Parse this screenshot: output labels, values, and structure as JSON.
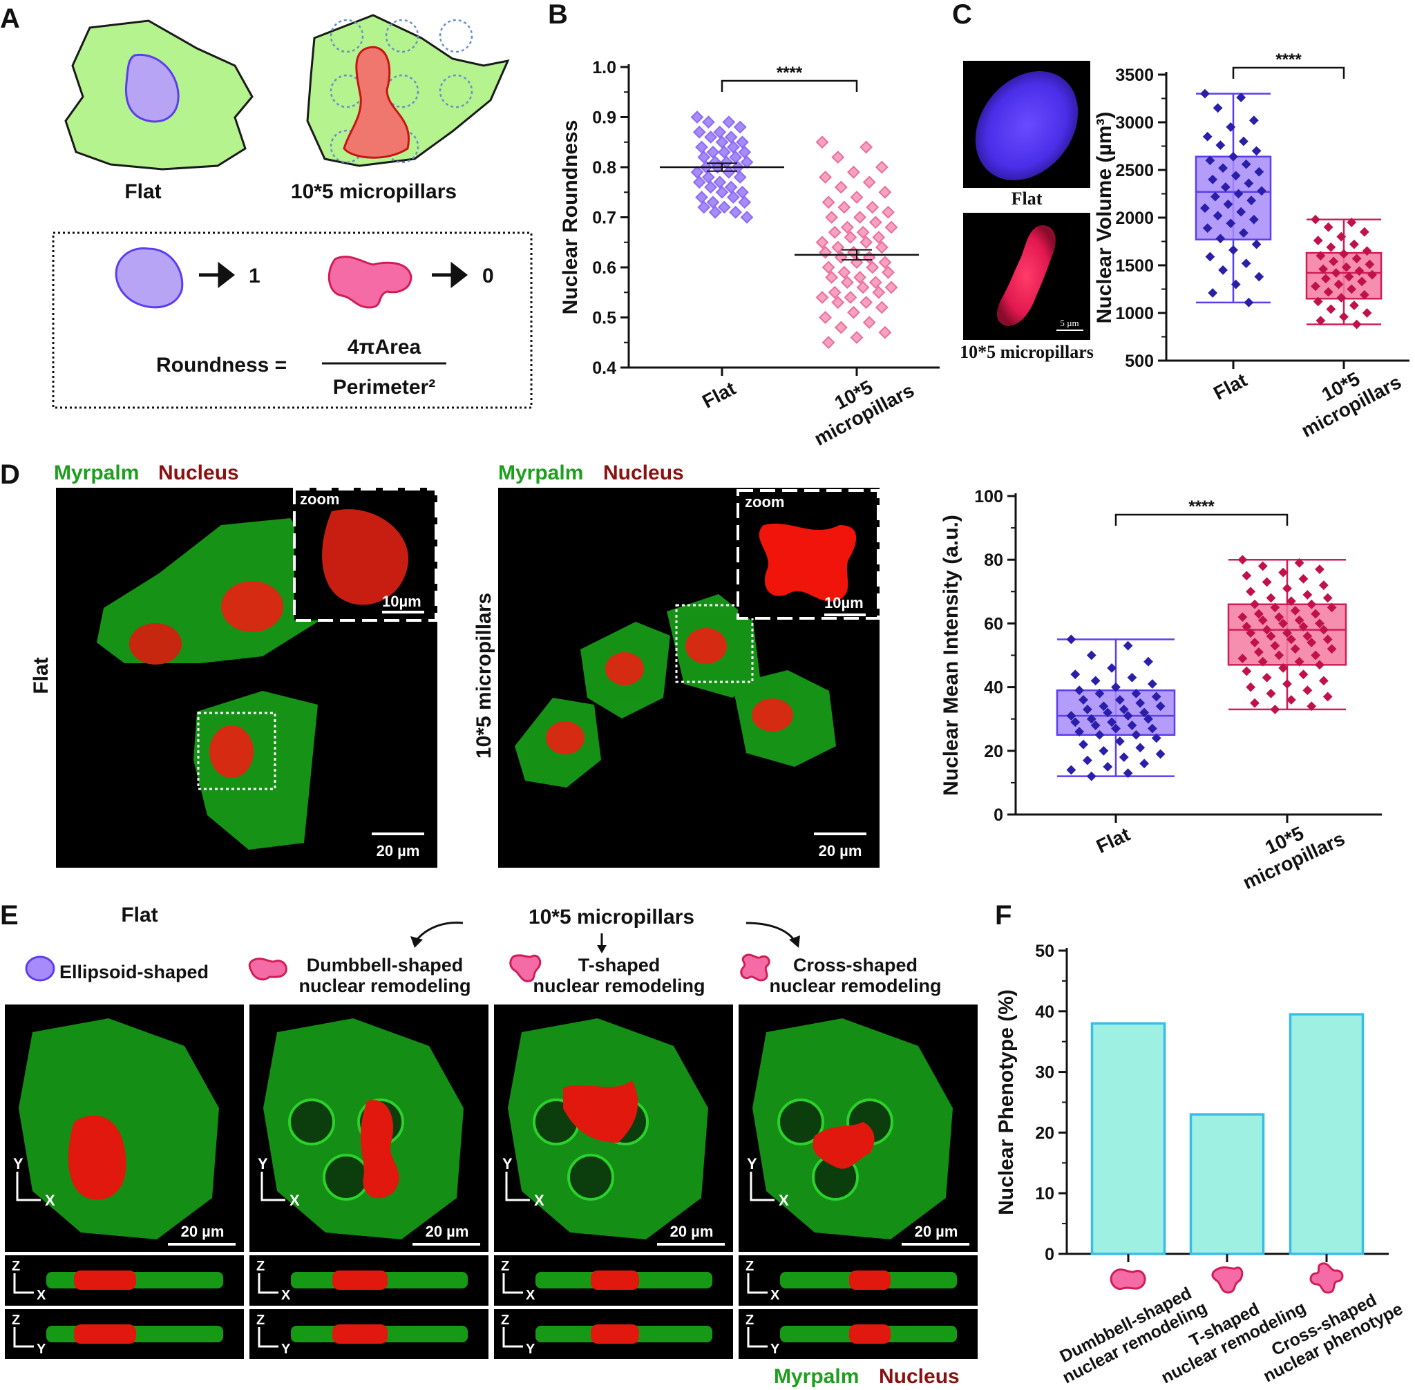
{
  "panel_letters": [
    "A",
    "B",
    "C",
    "D",
    "E",
    "F"
  ],
  "panelA": {
    "flat_label": "Flat",
    "pillar_label": "10*5 micropillars",
    "round_value": "1",
    "irregular_value": "0",
    "formula_lhs": "Roundness =",
    "formula_num": "4πArea",
    "formula_den": "Perimeter²"
  },
  "sig": "****",
  "micro_labels": {
    "myrpalm": "Myrpalm",
    "nucleus": "Nucleus",
    "zoom": "zoom",
    "scale_10": "10µm",
    "scale_20": "20 µm",
    "scale_5": "5 µm",
    "flat": "Flat",
    "pillars": "10*5 micropillars",
    "axis_x": "X",
    "axis_y": "Y",
    "axis_z": "Z"
  },
  "panelE": {
    "flat_title": "Flat",
    "pillars_title": "10*5 micropillars",
    "ellipsoid": "Ellipsoid-shaped",
    "dumbbell_1": "Dumbbell-shaped",
    "dumbbell_2": "nuclear remodeling",
    "t_1": "T-shaped",
    "t_2": "nuclear remodeling",
    "cross_1": "Cross-shaped",
    "cross_2": "nuclear remodeling"
  },
  "colors": {
    "green": "#1e9e1e",
    "darkred": "#8b1010",
    "purple_fill": "#a78bfa",
    "purple_dark": "#2a1fa8",
    "pink_fill": "#f08aaa",
    "pink_dark": "#d11d55",
    "cyan_fill": "#9ef0e2",
    "cyan_edge": "#38bde8"
  },
  "chart_data": [
    {
      "id": "B",
      "type": "scatter",
      "ylabel": "Nuclear Roundness",
      "ylim": [
        0.4,
        1.0
      ],
      "yticks": [
        "0.4",
        "0.5",
        "0.6",
        "0.7",
        "0.8",
        "0.9",
        "1.0"
      ],
      "categories": [
        "Flat",
        "10*5 micropillars"
      ],
      "cat_lines": [
        [
          "Flat"
        ],
        [
          "10*5",
          "micropillars"
        ]
      ],
      "means": [
        0.8,
        0.625
      ],
      "sems": [
        0.008,
        0.01
      ],
      "series": [
        {
          "values": [
            0.9,
            0.89,
            0.89,
            0.88,
            0.87,
            0.87,
            0.86,
            0.86,
            0.85,
            0.85,
            0.84,
            0.84,
            0.83,
            0.83,
            0.83,
            0.82,
            0.82,
            0.81,
            0.81,
            0.81,
            0.8,
            0.8,
            0.8,
            0.79,
            0.79,
            0.78,
            0.78,
            0.77,
            0.77,
            0.76,
            0.76,
            0.75,
            0.75,
            0.74,
            0.74,
            0.73,
            0.73,
            0.72,
            0.72,
            0.71,
            0.71,
            0.7
          ]
        },
        {
          "values": [
            0.85,
            0.84,
            0.82,
            0.8,
            0.79,
            0.78,
            0.77,
            0.76,
            0.75,
            0.74,
            0.73,
            0.72,
            0.72,
            0.71,
            0.7,
            0.7,
            0.69,
            0.68,
            0.68,
            0.67,
            0.67,
            0.66,
            0.66,
            0.65,
            0.65,
            0.64,
            0.64,
            0.63,
            0.63,
            0.62,
            0.62,
            0.61,
            0.61,
            0.6,
            0.6,
            0.59,
            0.59,
            0.58,
            0.58,
            0.57,
            0.57,
            0.56,
            0.56,
            0.55,
            0.55,
            0.54,
            0.54,
            0.53,
            0.53,
            0.52,
            0.51,
            0.5,
            0.49,
            0.48,
            0.47,
            0.46,
            0.45
          ]
        }
      ]
    },
    {
      "id": "C",
      "type": "box",
      "ylabel": "Nuclear Volume (µm³)",
      "ylim": [
        500,
        3500
      ],
      "yticks": [
        "500",
        "1000",
        "1500",
        "2000",
        "2500",
        "3000",
        "3500"
      ],
      "categories": [
        "Flat",
        "10*5 micropillars"
      ],
      "cat_lines": [
        [
          "Flat"
        ],
        [
          "10*5",
          "micropillars"
        ]
      ],
      "boxes": [
        {
          "min": 1110,
          "q1": 1770,
          "median": 2270,
          "q3": 2640,
          "max": 3300
        },
        {
          "min": 880,
          "q1": 1150,
          "median": 1420,
          "q3": 1630,
          "max": 1980
        }
      ],
      "series": [
        {
          "values": [
            3300,
            3260,
            3150,
            3020,
            2950,
            2850,
            2800,
            2760,
            2700,
            2640,
            2600,
            2560,
            2520,
            2480,
            2440,
            2400,
            2360,
            2320,
            2280,
            2250,
            2220,
            2180,
            2140,
            2100,
            2060,
            2020,
            1980,
            1940,
            1890,
            1840,
            1780,
            1720,
            1660,
            1590,
            1520,
            1450,
            1380,
            1300,
            1210,
            1110
          ]
        },
        {
          "values": [
            1980,
            1950,
            1900,
            1850,
            1800,
            1760,
            1720,
            1690,
            1650,
            1620,
            1600,
            1570,
            1540,
            1510,
            1480,
            1460,
            1440,
            1420,
            1400,
            1380,
            1360,
            1330,
            1300,
            1280,
            1250,
            1220,
            1190,
            1160,
            1120,
            1080,
            1040,
            1000,
            960,
            920,
            880
          ]
        }
      ]
    },
    {
      "id": "D",
      "type": "box",
      "ylabel": "Nuclear Mean Intensity (a.u.)",
      "ylim": [
        0,
        100
      ],
      "yticks": [
        "0",
        "20",
        "40",
        "60",
        "80",
        "100"
      ],
      "categories": [
        "Flat",
        "10*5 micropillars"
      ],
      "cat_lines": [
        [
          "Flat"
        ],
        [
          "10*5",
          "micropillars"
        ]
      ],
      "boxes": [
        {
          "min": 12,
          "q1": 25,
          "median": 31,
          "q3": 39,
          "max": 55
        },
        {
          "min": 33,
          "q1": 47,
          "median": 58,
          "q3": 66,
          "max": 80
        }
      ],
      "series": [
        {
          "values": [
            55,
            53,
            50,
            48,
            46,
            44,
            43,
            42,
            41,
            40,
            39,
            38,
            38,
            37,
            36,
            36,
            35,
            34,
            34,
            33,
            33,
            32,
            32,
            31,
            31,
            30,
            30,
            29,
            29,
            28,
            28,
            27,
            27,
            26,
            25,
            25,
            24,
            23,
            22,
            21,
            20,
            19,
            18,
            17,
            16,
            15,
            14,
            13,
            12
          ]
        },
        {
          "values": [
            80,
            79,
            78,
            77,
            76,
            75,
            74,
            73,
            72,
            71,
            70,
            69,
            68,
            68,
            67,
            66,
            66,
            65,
            65,
            64,
            63,
            63,
            62,
            62,
            61,
            61,
            60,
            60,
            59,
            59,
            58,
            58,
            57,
            57,
            56,
            56,
            55,
            55,
            54,
            54,
            53,
            52,
            52,
            51,
            50,
            50,
            49,
            48,
            48,
            47,
            46,
            45,
            44,
            43,
            42,
            41,
            40,
            39,
            38,
            37,
            36,
            35,
            34,
            33
          ]
        }
      ]
    },
    {
      "id": "F",
      "type": "bar",
      "ylabel": "Nuclear Phenotype (%)",
      "ylim": [
        0,
        50
      ],
      "yticks": [
        "0",
        "10",
        "20",
        "30",
        "40",
        "50"
      ],
      "categories": [
        "Dumbbell-shaped nuclear remodeling",
        "T-shaped nuclear remodeling",
        "Cross-shaped nuclear phenotype"
      ],
      "cat_lines": [
        [
          "Dumbbell-shaped",
          "nuclear remodeling"
        ],
        [
          "T-shaped",
          "nuclear remodeling"
        ],
        [
          "Cross-shaped",
          "nuclear phenotype"
        ]
      ],
      "values": [
        38,
        23,
        39.5
      ]
    }
  ]
}
